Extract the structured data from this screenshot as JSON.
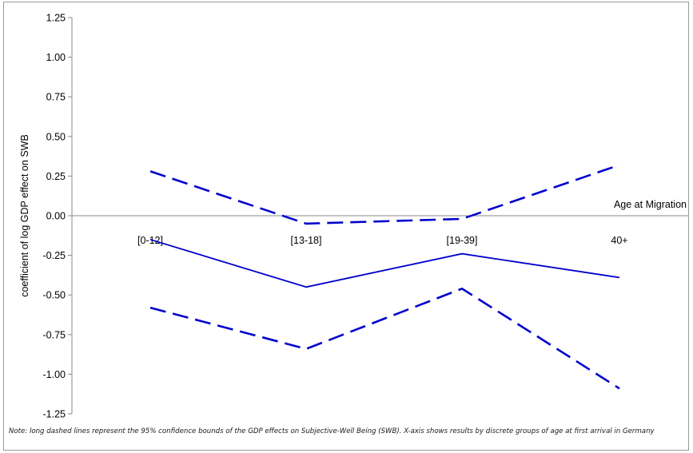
{
  "chart_data": {
    "type": "line",
    "categories": [
      "[0-12]",
      "[13-18]",
      "[19-39]",
      "40+"
    ],
    "series": [
      {
        "style": "solid",
        "values": [
          -0.15,
          -0.45,
          -0.24,
          -0.39
        ]
      },
      {
        "style": "long-dash",
        "values": [
          0.28,
          -0.05,
          -0.02,
          0.32
        ]
      },
      {
        "style": "long-dash",
        "values": [
          -0.58,
          -0.84,
          -0.46,
          -1.09
        ]
      }
    ],
    "ylabel": "coefficient  of log GDP effect on SWB",
    "xlabel": "Age at Migration",
    "ylim": [
      -1.25,
      1.25
    ],
    "yticks": [
      "1.25",
      "1.00",
      "0.75",
      "0.50",
      "0.25",
      "0.00",
      "-0.25",
      "-0.50",
      "-0.75",
      "-1.00",
      "-1.25"
    ],
    "grid": false,
    "line_color": "#0000cc",
    "axis_color": "#888888"
  },
  "note": "Note: long dashed lines represent the 95% confidence bounds of the GDP effects on Subjective-Well Being (SWB). X-axis shows results by discrete groups of age at first arrival in Germany"
}
